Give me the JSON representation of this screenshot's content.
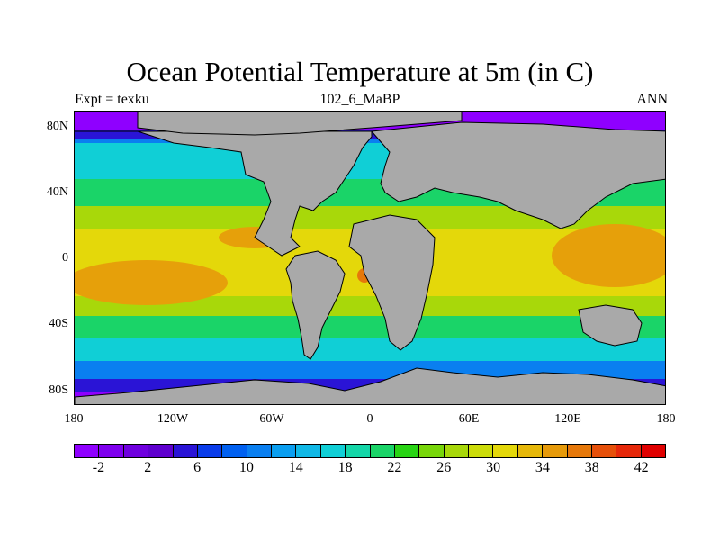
{
  "title": "Ocean Potential Temperature at 5m (in C)",
  "subtitle_left": "Expt = texku",
  "subtitle_center": "102_6_MaBP",
  "subtitle_right": "ANN",
  "lat_labels": [
    "80N",
    "40N",
    "0",
    "40S",
    "80S"
  ],
  "lon_labels": [
    "180",
    "120W",
    "60W",
    "0",
    "60E",
    "120E",
    "180"
  ],
  "colorbar": {
    "labels": [
      "-2",
      "2",
      "6",
      "10",
      "14",
      "18",
      "22",
      "26",
      "30",
      "34",
      "38",
      "42"
    ],
    "colors": [
      "#8f00ff",
      "#7f00ef",
      "#6f00df",
      "#5f00cf",
      "#2a14d6",
      "#0a3cea",
      "#0060f0",
      "#0a7ff0",
      "#0a9ef0",
      "#10b8e6",
      "#10cfd6",
      "#14d6a8",
      "#1ad468",
      "#28d414",
      "#78d60a",
      "#a8d80a",
      "#ccdc0a",
      "#e4d80a",
      "#e6b80a",
      "#e69a0a",
      "#e6780a",
      "#e6500a",
      "#e6280a",
      "#e00000"
    ]
  },
  "colors": {
    "land": "#a9a9a9",
    "sea_ice": "#8f00ff",
    "polar": "#2a14d6",
    "cold": "#0a7ff0",
    "cool": "#10cfd6",
    "mild": "#1ad468",
    "warm": "#a8d80a",
    "tropical": "#e4d80a",
    "hot": "#e6a00a",
    "hottest": "#e6780a"
  }
}
